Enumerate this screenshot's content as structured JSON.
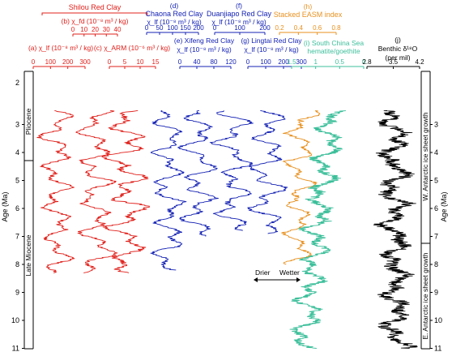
{
  "colors": {
    "red": "#e0201b",
    "blue": "#1422b4",
    "orange": "#e8901e",
    "teal": "#3cbf9a",
    "black": "#000000"
  },
  "figure": {
    "age_axis_label": "Age (Ma)",
    "age_ticks": [
      "3",
      "4",
      "5",
      "6",
      "7",
      "8",
      "9",
      "10",
      "11"
    ],
    "top_tick_left": "2",
    "epochs": {
      "pliocene": "Pliocene",
      "late_miocene": "Late Miocene"
    },
    "growth": {
      "west": "W. Antarctic ice sheet growth",
      "east": "E. Antarctic ice sheet growth"
    },
    "drier": "Drier",
    "wetter": "Wetter"
  },
  "chart_data": [
    {
      "id": "a",
      "type": "line",
      "site": "",
      "title": "(a) χ_lf (10⁻⁸ m³ / kg)",
      "ticks": [
        "0",
        "100",
        "200",
        "300"
      ],
      "y_range_ma": [
        2.5,
        8.3
      ],
      "x_range": [
        0,
        350
      ]
    },
    {
      "id": "b",
      "type": "line",
      "site": "Shilou Red Clay",
      "title": "(b) χ_fd (10⁻⁸ m³ / kg)",
      "ticks": [
        "0",
        "10",
        "20",
        "30",
        "40"
      ],
      "y_range_ma": [
        2.5,
        8.3
      ],
      "x_range": [
        0,
        45
      ]
    },
    {
      "id": "c",
      "type": "line",
      "site": "",
      "title": "(c) χ_ARM (10⁻⁶ m³ / kg)",
      "ticks": [
        "0",
        "5",
        "10",
        "15"
      ],
      "y_range_ma": [
        2.5,
        8.3
      ],
      "x_range": [
        0,
        16
      ]
    },
    {
      "id": "d",
      "type": "line",
      "site": "Chaona Red Clay",
      "title": "(d)",
      "unit": "χ_lf (10⁻⁸ m³ / kg)",
      "ticks": [
        "0",
        "50",
        "100",
        "150",
        "200"
      ],
      "y_range_ma": [
        2.5,
        8.2
      ],
      "x_range": [
        0,
        220
      ]
    },
    {
      "id": "e",
      "type": "line",
      "site": "Xifeng Red Clay",
      "title": "(e) Xifeng Red Clay",
      "unit": "χ_lf (10⁻⁸ m³ / kg)",
      "ticks": [
        "0",
        "40",
        "80",
        "120"
      ],
      "y_range_ma": [
        2.5,
        7.0
      ],
      "x_range": [
        0,
        140
      ]
    },
    {
      "id": "f",
      "type": "line",
      "site": "Duanjiapo Red Clay",
      "title": "(f)",
      "unit": "χ_lf (10⁻⁸ m³ / kg)",
      "ticks": [
        "0",
        "100",
        "200"
      ],
      "y_range_ma": [
        2.5,
        6.8
      ],
      "x_range": [
        0,
        230
      ]
    },
    {
      "id": "g",
      "type": "line",
      "site": "Lingtai Red Clay",
      "title": "(g) Lingtai Red Clay",
      "unit": "χ_lf (10⁻⁸ m³ / kg)",
      "ticks": [
        "0",
        "100",
        "200",
        "300"
      ],
      "y_range_ma": [
        2.5,
        6.9
      ],
      "x_range": [
        0,
        330
      ]
    },
    {
      "id": "h",
      "type": "line",
      "site": "Stacked EASM index",
      "title": "(h)",
      "ticks": [
        "0.2",
        "0.4",
        "0.6",
        "0.8"
      ],
      "y_range_ma": [
        2.5,
        8.0
      ],
      "x_range": [
        0.15,
        0.85
      ]
    },
    {
      "id": "i",
      "type": "line",
      "site": "",
      "title": "(i) South China Sea",
      "unit": "hematite/goethite",
      "ticks": [
        "1.5",
        "1",
        "0.5",
        "0"
      ],
      "y_range_ma": [
        2.5,
        11.0
      ],
      "x_range": [
        2.0,
        0
      ]
    },
    {
      "id": "j",
      "type": "line",
      "site": "",
      "title": "(j)",
      "unit": "Benthic δ¹⁸O",
      "unit2": "(per mil)",
      "ticks": [
        "2.8",
        "3.5",
        "4.2"
      ],
      "y_range_ma": [
        2.5,
        11.0
      ],
      "x_range": [
        2.7,
        4.3
      ]
    }
  ]
}
